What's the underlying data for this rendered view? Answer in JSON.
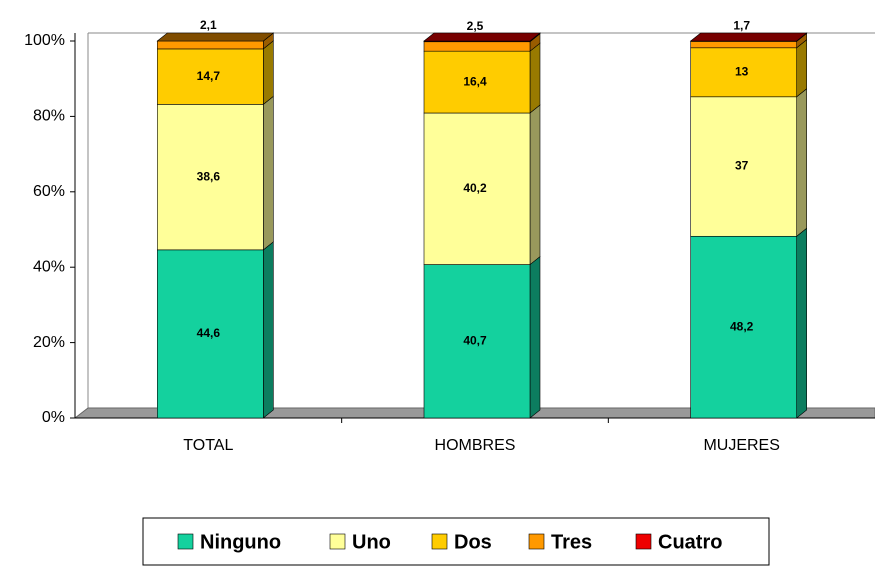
{
  "chart_data": {
    "type": "bar3d_stacked",
    "categories": [
      "TOTAL",
      "HOMBRES",
      "MUJERES"
    ],
    "series": [
      {
        "name": "Ninguno",
        "color": "#14d19e",
        "values": [
          44.6,
          40.7,
          48.2
        ],
        "value_labels": [
          "44,6",
          "40,7",
          "48,2"
        ]
      },
      {
        "name": "Uno",
        "color": "#ffff99",
        "values": [
          38.6,
          40.2,
          37
        ],
        "value_labels": [
          "38,6",
          "40,2",
          "37"
        ]
      },
      {
        "name": "Dos",
        "color": "#ffcc00",
        "values": [
          14.7,
          16.4,
          13
        ],
        "value_labels": [
          "14,7",
          "16,4",
          "13"
        ]
      },
      {
        "name": "Tres",
        "color": "#ff9900",
        "values": [
          2.1,
          2.5,
          1.7
        ],
        "value_labels": [
          "2,1",
          "2,5",
          "1,7"
        ]
      },
      {
        "name": "Cuatro",
        "color": "#ee0000",
        "values": [
          0,
          0.2,
          0.1
        ]
      }
    ],
    "ylim": [
      0,
      100
    ],
    "yticks": [
      {
        "value": 0,
        "label": "0%"
      },
      {
        "value": 20,
        "label": "20%"
      },
      {
        "value": 40,
        "label": "40%"
      },
      {
        "value": 60,
        "label": "60%"
      },
      {
        "value": 80,
        "label": "80%"
      },
      {
        "value": 100,
        "label": "100%"
      }
    ],
    "legend": "bottom"
  }
}
